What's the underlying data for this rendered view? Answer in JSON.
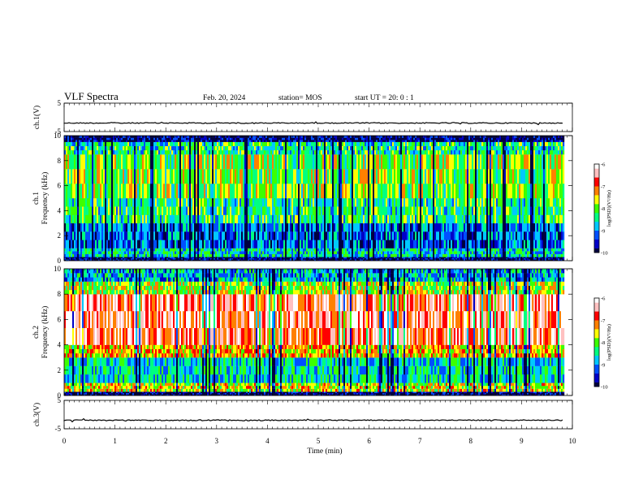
{
  "header": {
    "title": "VLF Spectra",
    "date": "Feb. 20, 2024",
    "station": "station= MOS",
    "start": "start  UT =   20: 0  : 1"
  },
  "chart_data": [
    {
      "type": "line",
      "name": "ch.1 waveform",
      "ylabel": "ch.1(V)",
      "ylim": [
        -5,
        5
      ],
      "y_ticks": [
        "5",
        "-5"
      ],
      "x": [
        0,
        9.83
      ],
      "y": [
        -2.0,
        -2.0
      ]
    },
    {
      "type": "heatmap",
      "name": "ch.1 spectrogram",
      "ylabel": "ch.1\nFrequency (kHz)",
      "ylim": [
        0,
        10
      ],
      "y_ticks": [
        "0",
        "2",
        "4",
        "6",
        "8",
        "10"
      ],
      "xlim": [
        0,
        9.83
      ],
      "colorbar": {
        "label": "log(PSD)(V²/Hz)",
        "range": [
          -10,
          -6
        ],
        "ticks": [
          "-6",
          "-7",
          "-8",
          "-9",
          "-10"
        ]
      },
      "bands": [
        {
          "f": [
            0.0,
            0.3
          ],
          "level": -9.8
        },
        {
          "f": [
            0.3,
            1.0
          ],
          "level": -8.6
        },
        {
          "f": [
            1.0,
            3.0
          ],
          "level": -9.2
        },
        {
          "f": [
            3.0,
            5.0
          ],
          "level": -8.3
        },
        {
          "f": [
            5.0,
            8.5
          ],
          "level": -7.9
        },
        {
          "f": [
            8.5,
            9.5
          ],
          "level": -8.4
        },
        {
          "f": [
            9.5,
            10.0
          ],
          "level": -9.8
        }
      ]
    },
    {
      "type": "heatmap",
      "name": "ch.2 spectrogram",
      "ylabel": "ch.2\nFrequency (kHz)",
      "ylim": [
        0,
        10
      ],
      "y_ticks": [
        "0",
        "2",
        "4",
        "6",
        "8",
        "10"
      ],
      "xlim": [
        0,
        9.83
      ],
      "colorbar": {
        "label": "log(PSD)(V²/Hz)",
        "range": [
          -10,
          -6
        ],
        "ticks": [
          "-6",
          "-7",
          "-8",
          "-9",
          "-10"
        ]
      },
      "bands": [
        {
          "f": [
            0.0,
            0.3
          ],
          "level": -9.8
        },
        {
          "f": [
            0.3,
            1.0
          ],
          "level": -7.6
        },
        {
          "f": [
            1.0,
            3.0
          ],
          "level": -8.6
        },
        {
          "f": [
            3.0,
            4.0
          ],
          "level": -7.4
        },
        {
          "f": [
            4.0,
            8.0
          ],
          "level": -6.6
        },
        {
          "f": [
            8.0,
            9.0
          ],
          "level": -7.8
        },
        {
          "f": [
            9.0,
            10.0
          ],
          "level": -8.8
        }
      ]
    },
    {
      "type": "line",
      "name": "ch.3 waveform",
      "ylabel": "ch.3(V)",
      "ylim": [
        -5,
        5
      ],
      "y_ticks": [
        "5",
        "-5"
      ],
      "x": [
        0,
        9.83
      ],
      "y": [
        -2.0,
        -2.0
      ]
    }
  ],
  "xaxis": {
    "label": "Time  (min)",
    "range": [
      0,
      10
    ],
    "ticks": [
      "0",
      "1",
      "2",
      "3",
      "4",
      "5",
      "6",
      "7",
      "8",
      "9",
      "10"
    ]
  },
  "colors": {
    "colormap": [
      "#000040",
      "#0000c8",
      "#0050ff",
      "#00c8ff",
      "#00ff80",
      "#3cff00",
      "#ffff00",
      "#ff8000",
      "#ff0000",
      "#ffc0c0",
      "#ffffff"
    ]
  }
}
